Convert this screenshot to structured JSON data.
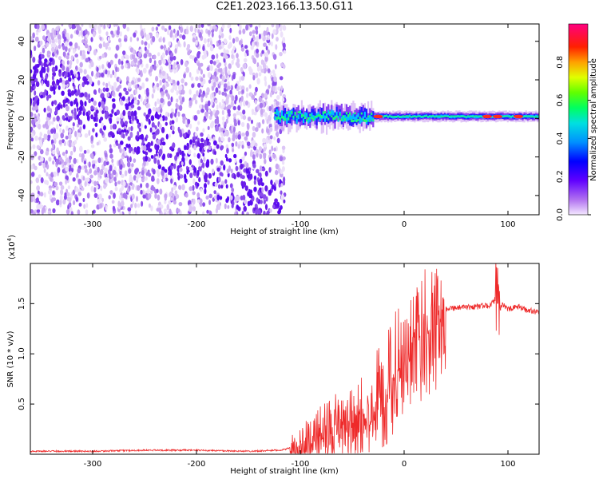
{
  "title": "C2E1.2023.166.13.50.G11",
  "colors": {
    "snr_line": "#ee2a2a",
    "spectrogram_scatter": "#6a1ce8",
    "colormap": [
      "#ffffff",
      "#c8a0f0",
      "#7a00ff",
      "#0000ff",
      "#00c8ff",
      "#00ff80",
      "#80ff00",
      "#ffff00",
      "#ff8000",
      "#ff0000",
      "#ff0080"
    ]
  },
  "chart_data": [
    {
      "type": "heatmap",
      "xlabel": "Height of straight line (km)",
      "ylabel": "Frequency (Hz)",
      "xlim": [
        -360,
        130
      ],
      "ylim": [
        -50,
        49
      ],
      "xticks": [
        -300,
        -200,
        -100,
        0,
        100
      ],
      "yticks": [
        -40,
        -20,
        0,
        20,
        40
      ],
      "colorbar": {
        "label": "Normalized spectral amplitude",
        "range": [
          0.0,
          1.0
        ],
        "ticks": [
          "0.0",
          "0.2",
          "0.4",
          "0.6",
          "0.8"
        ]
      },
      "features": {
        "scatter_region_x": [
          -360,
          -115
        ],
        "scatter_region_freq": [
          -50,
          49
        ],
        "dense_band_from_freq": [
          22,
          -45
        ],
        "signal_band_x": [
          -125,
          130
        ],
        "signal_band_center_freq": 1,
        "peak_amplitude_near_x": [
          -25,
          80,
          90,
          110
        ]
      }
    },
    {
      "type": "line",
      "xlabel": "Height of straight line (km)",
      "ylabel": "SNR (10 * v/v)",
      "y_exponent": "(x10",
      "y_exponent_power": "4",
      "y_exponent_close": ")",
      "xlim": [
        -360,
        130
      ],
      "ylim": [
        0,
        1.9
      ],
      "xticks": [
        -300,
        -200,
        -100,
        0,
        100
      ],
      "yticks": [
        "0.5",
        "1.0",
        "1.5"
      ],
      "series": [
        {
          "x": [
            -360,
            -300,
            -250,
            -200,
            -150,
            -120,
            -110,
            -100,
            -90,
            -80,
            -70,
            -60,
            -50,
            -40,
            -30,
            -25,
            -20,
            -15,
            -10,
            -5,
            0,
            10,
            20,
            30,
            40,
            50,
            60,
            70,
            80,
            85,
            90,
            92,
            95,
            100,
            110,
            120,
            130
          ],
          "y": [
            0.03,
            0.03,
            0.04,
            0.04,
            0.03,
            0.04,
            0.06,
            0.12,
            0.2,
            0.26,
            0.32,
            0.36,
            0.42,
            0.52,
            0.65,
            0.72,
            0.7,
            0.85,
            0.95,
            1.05,
            1.15,
            1.25,
            1.35,
            1.42,
            1.45,
            1.46,
            1.46,
            1.47,
            1.48,
            1.5,
            1.58,
            1.45,
            1.5,
            1.44,
            1.47,
            1.43,
            1.42
          ]
        }
      ]
    }
  ]
}
